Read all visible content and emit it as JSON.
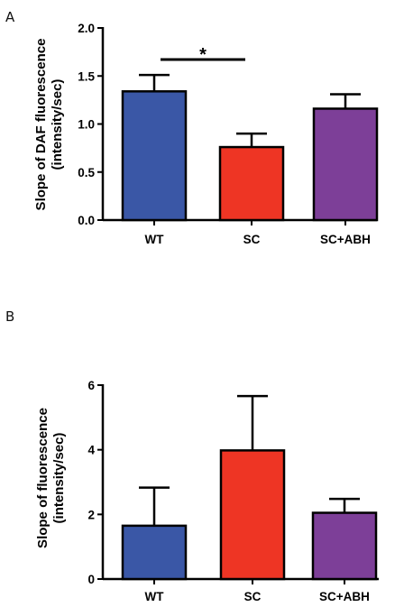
{
  "chart_data": [
    {
      "panel": "A",
      "type": "bar",
      "categories": [
        "WT",
        "SC",
        "SC+ABH"
      ],
      "values": [
        1.34,
        0.76,
        1.16
      ],
      "errors": [
        0.17,
        0.14,
        0.15
      ],
      "colors": [
        "#3a57a6",
        "#ee3524",
        "#7d3f98"
      ],
      "ylabel": "Slope of DAF fluorescence\n(intensity/sec)",
      "ylim": [
        0,
        2.0
      ],
      "yticks": [
        "0.0",
        "0.5",
        "1.0",
        "1.5",
        "2.0"
      ],
      "significance": [
        {
          "from": "WT",
          "to": "SC",
          "label": "*"
        }
      ]
    },
    {
      "panel": "B",
      "type": "bar",
      "categories": [
        "WT",
        "SC",
        "SC+ABH"
      ],
      "values": [
        1.65,
        3.98,
        2.05
      ],
      "errors": [
        1.18,
        1.68,
        0.43
      ],
      "colors": [
        "#3a57a6",
        "#ee3524",
        "#7d3f98"
      ],
      "ylabel": "Slope of fluorescence\n(intensity/sec)",
      "ylim": [
        0,
        6
      ],
      "yticks": [
        "0",
        "2",
        "4",
        "6"
      ]
    }
  ]
}
